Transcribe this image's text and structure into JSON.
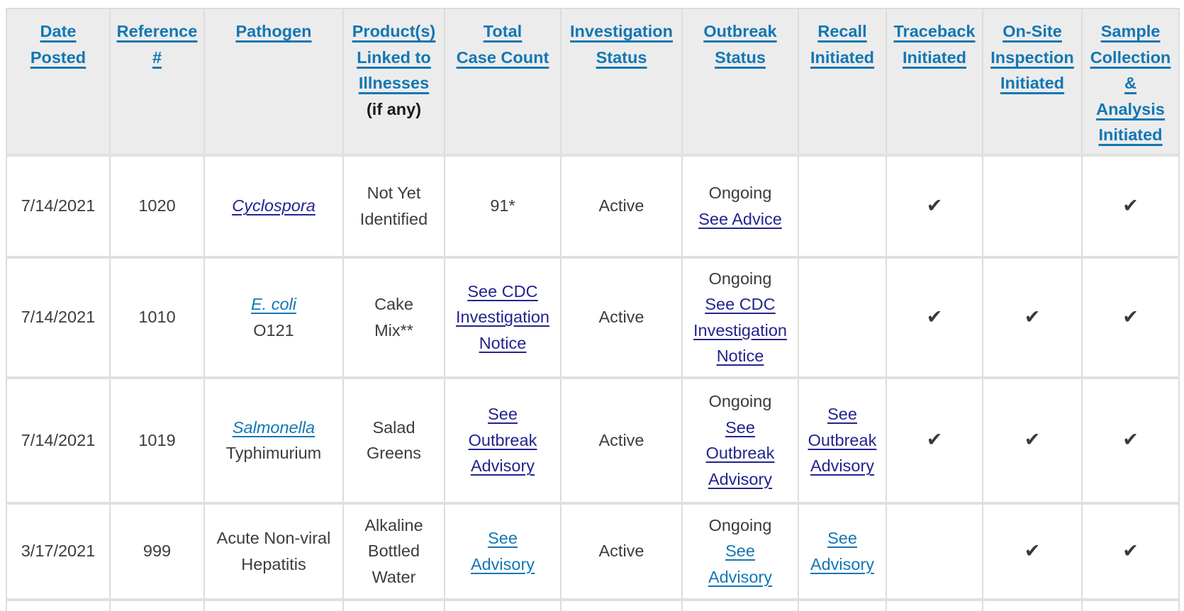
{
  "colors": {
    "link-blue": "#1277b4",
    "link-navy": "#23238e",
    "text": "#3c3c3c",
    "header-bg": "#ececec",
    "border-v": "#dcdcdc",
    "border-h": "#e0e0e0",
    "check": "#3a3a3a"
  },
  "icons": {
    "check": "✔"
  },
  "header": {
    "date_posted": {
      "lines": [
        "Date",
        "Posted"
      ]
    },
    "reference": {
      "lines": [
        "Reference",
        "#"
      ]
    },
    "pathogen": {
      "lines": [
        "Pathogen"
      ]
    },
    "product": {
      "lines": [
        "Product(s)",
        "Linked to",
        "Illnesses"
      ],
      "note": "(if any)"
    },
    "case_count": {
      "lines": [
        "Total",
        "Case Count"
      ]
    },
    "investigation": {
      "lines": [
        "Investigation",
        "Status"
      ]
    },
    "outbreak": {
      "lines": [
        "Outbreak",
        "Status"
      ]
    },
    "recall": {
      "lines": [
        "Recall",
        "Initiated"
      ]
    },
    "traceback": {
      "lines": [
        "Traceback",
        "Initiated"
      ]
    },
    "onsite": {
      "lines": [
        "On-Site",
        "Inspection",
        "Initiated"
      ]
    },
    "sample": {
      "lines": [
        "Sample",
        "Collection",
        "&",
        "Analysis",
        "Initiated"
      ]
    }
  },
  "rows": [
    {
      "date": "7/14/2021",
      "reference": "1020",
      "pathogen": {
        "link": {
          "lines": [
            "Cyclospora"
          ],
          "style": "navy"
        },
        "extra": ""
      },
      "product": {
        "lines": [
          "Not Yet",
          "Identified"
        ]
      },
      "case_count": {
        "text": "91*"
      },
      "investigation_status": "Active",
      "outbreak_status": {
        "prefix": "Ongoing",
        "link": {
          "lines": [
            "See Advice"
          ],
          "style": "navy"
        }
      },
      "recall": {
        "link": null
      },
      "checks": {
        "traceback": "✔",
        "onsite": "",
        "sample": "✔"
      }
    },
    {
      "date": "7/14/2021",
      "reference": "1010",
      "pathogen": {
        "link": {
          "lines": [
            "E. coli"
          ],
          "style": "blue"
        },
        "extra": "O121"
      },
      "product": {
        "lines": [
          "Cake",
          "Mix**"
        ]
      },
      "case_count": {
        "link": {
          "lines": [
            "See CDC",
            "Investigation",
            "Notice"
          ],
          "style": "navy"
        }
      },
      "investigation_status": "Active",
      "outbreak_status": {
        "prefix": "Ongoing",
        "link": {
          "lines": [
            "See CDC",
            "Investigation",
            "Notice"
          ],
          "style": "navy"
        }
      },
      "recall": {
        "link": null
      },
      "checks": {
        "traceback": "✔",
        "onsite": "✔",
        "sample": "✔"
      }
    },
    {
      "date": "7/14/2021",
      "reference": "1019",
      "pathogen": {
        "link": {
          "lines": [
            "Salmonella"
          ],
          "style": "blue"
        },
        "extra": "Typhimurium"
      },
      "product": {
        "lines": [
          "Salad",
          "Greens"
        ]
      },
      "case_count": {
        "link": {
          "lines": [
            "See",
            "Outbreak",
            "Advisory"
          ],
          "style": "navy"
        }
      },
      "investigation_status": "Active",
      "outbreak_status": {
        "prefix": "Ongoing",
        "link": {
          "lines": [
            "See",
            "Outbreak",
            "Advisory"
          ],
          "style": "navy"
        }
      },
      "recall": {
        "link": {
          "lines": [
            "See",
            "Outbreak",
            "Advisory"
          ],
          "style": "navy"
        }
      },
      "checks": {
        "traceback": "✔",
        "onsite": "✔",
        "sample": "✔"
      }
    },
    {
      "date": "3/17/2021",
      "reference": "999",
      "pathogen": {
        "link": null,
        "plain": {
          "lines": [
            "Acute Non-viral",
            "Hepatitis"
          ]
        }
      },
      "product": {
        "lines": [
          "Alkaline",
          "Bottled",
          "Water"
        ]
      },
      "case_count": {
        "link": {
          "lines": [
            "See",
            "Advisory"
          ],
          "style": "blue"
        }
      },
      "investigation_status": "Active",
      "outbreak_status": {
        "prefix": "Ongoing",
        "link": {
          "lines": [
            "See",
            "Advisory"
          ],
          "style": "blue"
        }
      },
      "recall": {
        "link": {
          "lines": [
            "See",
            "Advisory"
          ],
          "style": "blue"
        }
      },
      "checks": {
        "traceback": "",
        "onsite": "✔",
        "sample": "✔"
      }
    }
  ]
}
